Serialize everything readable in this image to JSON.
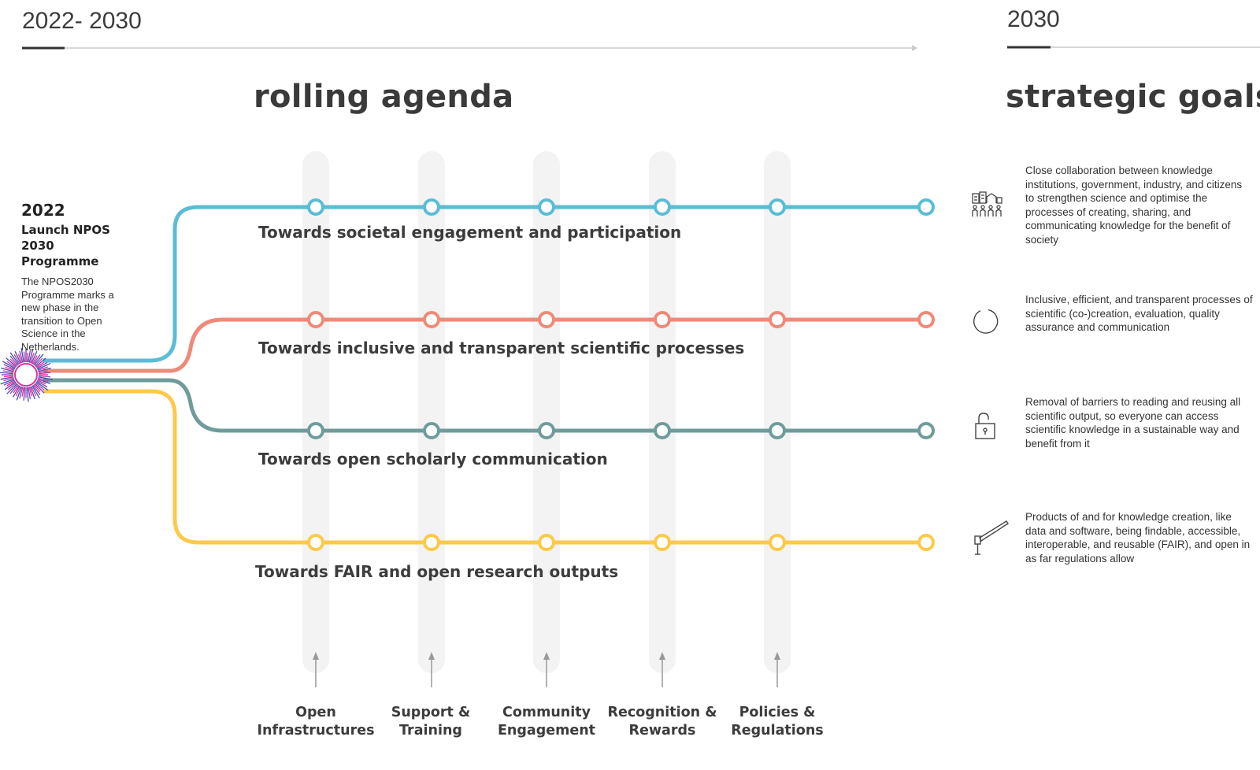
{
  "header": {
    "period_left": "2022- 2030",
    "period_right": "2030"
  },
  "titles": {
    "rolling_agenda": "rolling agenda",
    "strategic_goals": "strategic goals"
  },
  "launch": {
    "year": "2022",
    "title": "Launch NPOS 2030 Programme",
    "description": "The NPOS2030 Programme marks a new phase in the transition to Open Science in the Netherlands."
  },
  "tracks": [
    {
      "label": "Towards societal engagement and participation",
      "color": "#5bbcd6"
    },
    {
      "label": "Towards inclusive and transparent scientific processes",
      "color": "#ee8a79"
    },
    {
      "label": "Towards open scholarly communication",
      "color": "#6f9c9b"
    },
    {
      "label": "Towards FAIR and open research outputs",
      "color": "#fdc94a"
    }
  ],
  "pillars": [
    {
      "label": "Open Infrastructures"
    },
    {
      "label": "Support & Training"
    },
    {
      "label": "Community Engagement"
    },
    {
      "label": "Recognition & Rewards"
    },
    {
      "label": "Policies & Regulations"
    }
  ],
  "goals": [
    {
      "icon": "people-buildings-icon",
      "text": "Close collaboration between knowledge institutions, government, industry, and citizens to strengthen science and optimise the processes of creating, sharing, and communicating knowledge for the benefit of society"
    },
    {
      "icon": "open-circle-icon",
      "text": "Inclusive, efficient, and transparent processes of scientific (co-)creation, evaluation, quality assurance and communication"
    },
    {
      "icon": "open-lock-icon",
      "text": "Removal of barriers to reading and reusing all scientific output, so everyone can access scientific knowledge in a sustainable way and benefit from it"
    },
    {
      "icon": "barrier-gate-icon",
      "text": "Products of and for knowledge creation, like data and software, being findable, accessible, interoperable, and reusable (FAIR), and open in as far regulations allow"
    }
  ],
  "colors": {
    "pillar_band": "#f3f3f3",
    "axis_line": "#cccccc",
    "accent_dark": "#333333"
  }
}
